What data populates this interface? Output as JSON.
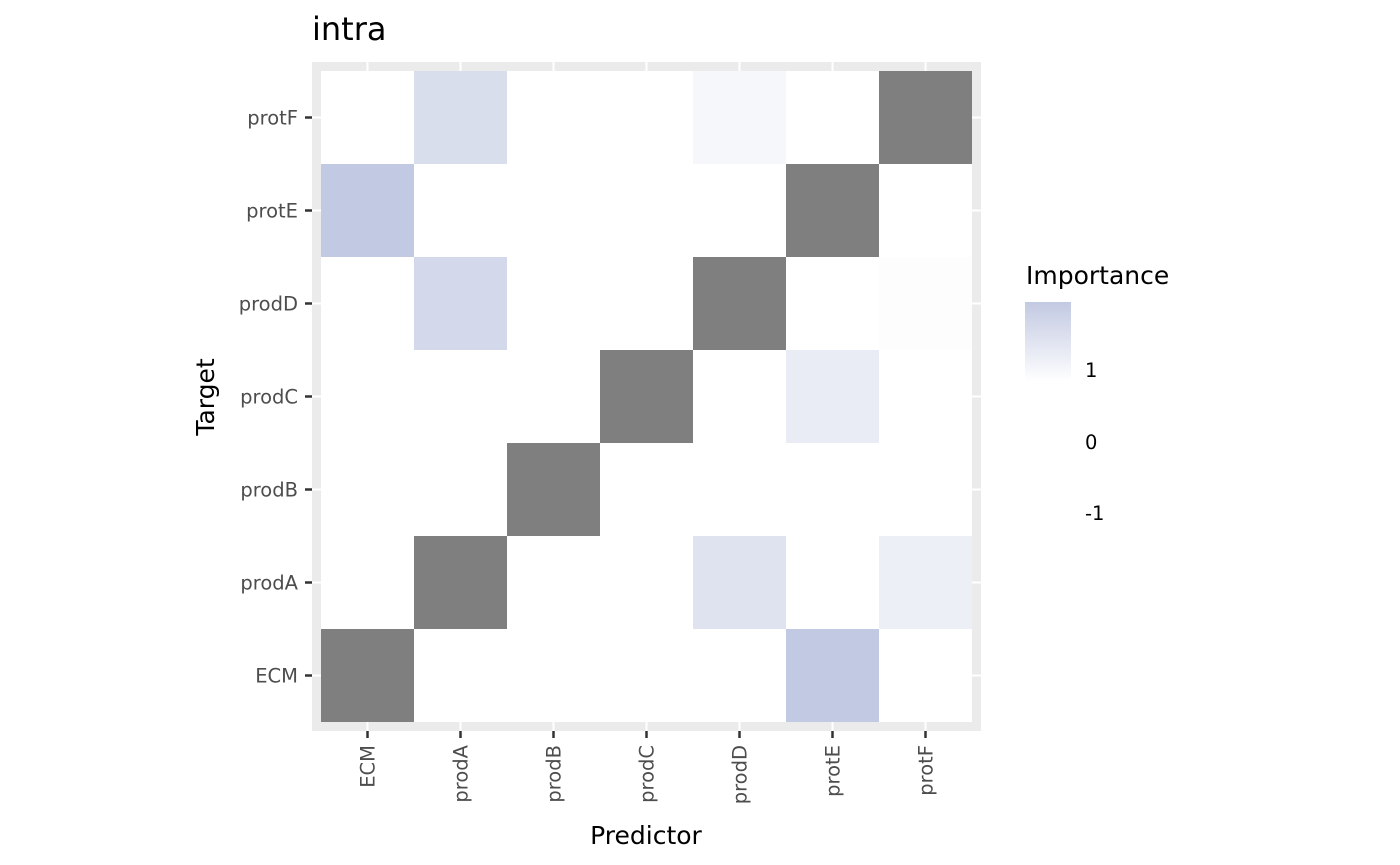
{
  "chart_data": {
    "type": "heatmap",
    "title": "intra",
    "xlabel": "Predictor",
    "ylabel": "Target",
    "x_categories": [
      "ECM",
      "prodA",
      "prodB",
      "prodC",
      "prodD",
      "protE",
      "protF"
    ],
    "y_categories": [
      "ECM",
      "prodA",
      "prodB",
      "prodC",
      "prodD",
      "protE",
      "protF"
    ],
    "diagonal_color": "#7f7f7f",
    "low_color": "#ffffff",
    "high_color": "#c2c9e2",
    "grid": true,
    "legend": {
      "title": "Importance",
      "position": "right",
      "labels": [
        "1",
        "0",
        "-1"
      ]
    },
    "cells": [
      {
        "x": "prodA",
        "y": "protF",
        "value": 0.62
      },
      {
        "x": "prodD",
        "y": "protF",
        "value": 0.15
      },
      {
        "x": "protF",
        "y": "protF",
        "value": null
      },
      {
        "x": "ECM",
        "y": "protE",
        "value": 1.0
      },
      {
        "x": "protE",
        "y": "protE",
        "value": null
      },
      {
        "x": "prodA",
        "y": "prodD",
        "value": 0.72
      },
      {
        "x": "prodD",
        "y": "prodD",
        "value": null
      },
      {
        "x": "protF",
        "y": "prodD",
        "value": 0.03
      },
      {
        "x": "prodC",
        "y": "prodC",
        "value": null
      },
      {
        "x": "protE",
        "y": "prodC",
        "value": 0.35
      },
      {
        "x": "prodB",
        "y": "prodB",
        "value": null
      },
      {
        "x": "prodA",
        "y": "prodA",
        "value": null
      },
      {
        "x": "prodD",
        "y": "prodA",
        "value": 0.52
      },
      {
        "x": "protF",
        "y": "prodA",
        "value": 0.3
      },
      {
        "x": "ECM",
        "y": "ECM",
        "value": null
      },
      {
        "x": "protE",
        "y": "ECM",
        "value": 1.0
      }
    ]
  }
}
